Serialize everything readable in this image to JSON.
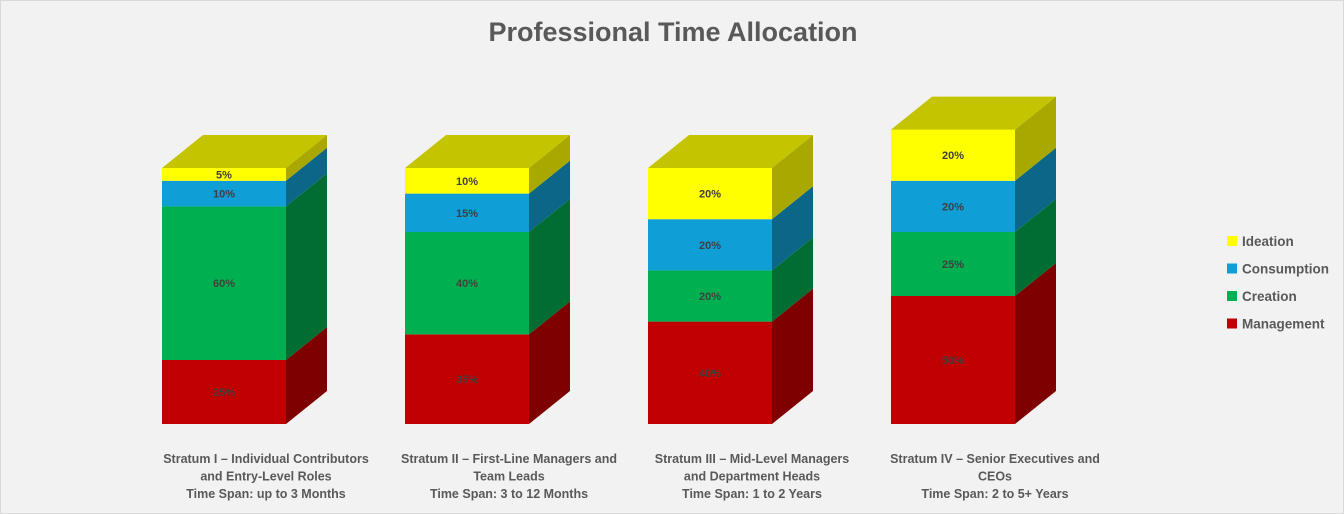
{
  "chart_data": {
    "type": "bar",
    "stacked": true,
    "style": "3d-stacked-column",
    "title": "Professional Time Allocation",
    "categories": [
      [
        "Stratum I – Individual Contributors",
        "and Entry-Level Roles",
        "Time Span: up to 3 Months"
      ],
      [
        "Stratum II – First-Line Managers and",
        "Team Leads",
        "Time Span: 3 to 12 Months"
      ],
      [
        "Stratum III – Mid-Level Managers",
        "and Department Heads",
        "Time Span: 1 to 2 Years"
      ],
      [
        "Stratum IV – Senior Executives and",
        "CEOs",
        "Time Span: 2 to 5+ Years"
      ]
    ],
    "series": [
      {
        "name": "Management",
        "color": "#c00000",
        "side_color": "#7f0000",
        "top_color": "#990000",
        "values": [
          25,
          35,
          40,
          50
        ],
        "labels": [
          "25%",
          "35%",
          "40%",
          "50%"
        ]
      },
      {
        "name": "Creation",
        "color": "#00b050",
        "side_color": "#006e32",
        "top_color": "#008a3e",
        "values": [
          60,
          40,
          20,
          25
        ],
        "labels": [
          "60%",
          "40%",
          "20%",
          "25%"
        ]
      },
      {
        "name": "Consumption",
        "color": "#0f9ed5",
        "side_color": "#0b6688",
        "top_color": "#0c7fab",
        "values": [
          10,
          15,
          20,
          20
        ],
        "labels": [
          "10%",
          "15%",
          "20%",
          "20%"
        ]
      },
      {
        "name": "Ideation",
        "color": "#ffff00",
        "side_color": "#a8a800",
        "top_color": "#c4c400",
        "values": [
          5,
          10,
          20,
          20
        ],
        "labels": [
          "5%",
          "10%",
          "20%",
          "20%"
        ]
      }
    ],
    "legend": {
      "position": "right",
      "order": [
        "Ideation",
        "Consumption",
        "Creation",
        "Management"
      ]
    },
    "grid": false,
    "ylim": [
      0,
      115
    ]
  }
}
